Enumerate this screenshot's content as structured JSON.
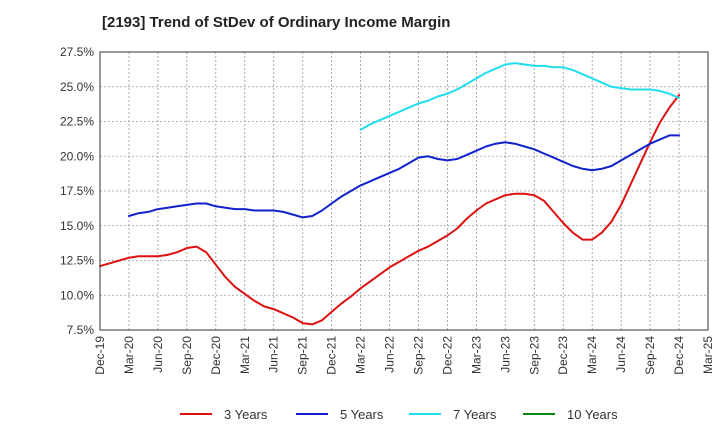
{
  "chart_data": {
    "type": "line",
    "title": "[2193]  Trend of StDev of Ordinary Income Margin",
    "xlabel": "",
    "ylabel": "",
    "x_ticks": [
      "Dec-19",
      "Mar-20",
      "Jun-20",
      "Sep-20",
      "Dec-20",
      "Mar-21",
      "Jun-21",
      "Sep-21",
      "Dec-21",
      "Mar-22",
      "Jun-22",
      "Sep-22",
      "Dec-22",
      "Mar-23",
      "Jun-23",
      "Sep-23",
      "Dec-23",
      "Mar-24",
      "Jun-24",
      "Sep-24",
      "Dec-24",
      "Mar-25"
    ],
    "y_ticks": [
      "7.5%",
      "10.0%",
      "12.5%",
      "15.0%",
      "17.5%",
      "20.0%",
      "22.5%",
      "25.0%",
      "27.5%"
    ],
    "ylim": [
      7.5,
      27.5
    ],
    "grid": true,
    "legend_position": "bottom",
    "series": [
      {
        "name": "3 Years",
        "color": "#dd1111",
        "x": [
          "Dec-19",
          "Jan-20",
          "Feb-20",
          "Mar-20",
          "Apr-20",
          "May-20",
          "Jun-20",
          "Jul-20",
          "Aug-20",
          "Sep-20",
          "Oct-20",
          "Nov-20",
          "Dec-20",
          "Jan-21",
          "Feb-21",
          "Mar-21",
          "Apr-21",
          "May-21",
          "Jun-21",
          "Jul-21",
          "Aug-21",
          "Sep-21",
          "Oct-21",
          "Nov-21",
          "Dec-21",
          "Jan-22",
          "Feb-22",
          "Mar-22",
          "Apr-22",
          "May-22",
          "Jun-22",
          "Jul-22",
          "Aug-22",
          "Sep-22",
          "Oct-22",
          "Nov-22",
          "Dec-22",
          "Jan-23",
          "Feb-23",
          "Mar-23",
          "Apr-23",
          "May-23",
          "Jun-23",
          "Jul-23",
          "Aug-23",
          "Sep-23",
          "Oct-23",
          "Nov-23",
          "Dec-23",
          "Jan-24",
          "Feb-24",
          "Mar-24",
          "Apr-24",
          "May-24",
          "Jun-24",
          "Jul-24",
          "Aug-24",
          "Sep-24",
          "Oct-24",
          "Nov-24",
          "Dec-24"
        ],
        "values": [
          12.1,
          12.3,
          12.5,
          12.7,
          12.8,
          12.8,
          12.8,
          12.9,
          13.1,
          13.4,
          13.5,
          13.1,
          12.2,
          11.3,
          10.6,
          10.1,
          9.6,
          9.2,
          9.0,
          8.7,
          8.4,
          8.0,
          7.9,
          8.2,
          8.8,
          9.4,
          9.9,
          10.5,
          11.0,
          11.5,
          12.0,
          12.4,
          12.8,
          13.2,
          13.5,
          13.9,
          14.3,
          14.8,
          15.5,
          16.1,
          16.6,
          16.9,
          17.2,
          17.3,
          17.3,
          17.2,
          16.8,
          16.0,
          15.2,
          14.5,
          14.0,
          14.0,
          14.5,
          15.3,
          16.5,
          18.0,
          19.5,
          21.0,
          22.4,
          23.5,
          24.4
        ]
      },
      {
        "name": "5 Years",
        "color": "#1122cc",
        "x": [
          "Mar-20",
          "Apr-20",
          "May-20",
          "Jun-20",
          "Jul-20",
          "Aug-20",
          "Sep-20",
          "Oct-20",
          "Nov-20",
          "Dec-20",
          "Jan-21",
          "Feb-21",
          "Mar-21",
          "Apr-21",
          "May-21",
          "Jun-21",
          "Jul-21",
          "Aug-21",
          "Sep-21",
          "Oct-21",
          "Nov-21",
          "Dec-21",
          "Jan-22",
          "Feb-22",
          "Mar-22",
          "Apr-22",
          "May-22",
          "Jun-22",
          "Jul-22",
          "Aug-22",
          "Sep-22",
          "Oct-22",
          "Nov-22",
          "Dec-22",
          "Jan-23",
          "Feb-23",
          "Mar-23",
          "Apr-23",
          "May-23",
          "Jun-23",
          "Jul-23",
          "Aug-23",
          "Sep-23",
          "Oct-23",
          "Nov-23",
          "Dec-23",
          "Jan-24",
          "Feb-24",
          "Mar-24",
          "Apr-24",
          "May-24",
          "Jun-24",
          "Jul-24",
          "Aug-24",
          "Sep-24",
          "Oct-24",
          "Nov-24",
          "Dec-24"
        ],
        "values": [
          15.7,
          15.9,
          16.0,
          16.2,
          16.3,
          16.4,
          16.5,
          16.6,
          16.6,
          16.4,
          16.3,
          16.2,
          16.2,
          16.1,
          16.1,
          16.1,
          16.0,
          15.8,
          15.6,
          15.7,
          16.1,
          16.6,
          17.1,
          17.5,
          17.9,
          18.2,
          18.5,
          18.8,
          19.1,
          19.5,
          19.9,
          20.0,
          19.8,
          19.7,
          19.8,
          20.1,
          20.4,
          20.7,
          20.9,
          21.0,
          20.9,
          20.7,
          20.5,
          20.2,
          19.9,
          19.6,
          19.3,
          19.1,
          19.0,
          19.1,
          19.3,
          19.7,
          20.1,
          20.5,
          20.9,
          21.2,
          21.5,
          21.5
        ]
      },
      {
        "name": "7 Years",
        "color": "#22ddee",
        "x": [
          "Mar-22",
          "Apr-22",
          "May-22",
          "Jun-22",
          "Jul-22",
          "Aug-22",
          "Sep-22",
          "Oct-22",
          "Nov-22",
          "Dec-22",
          "Jan-23",
          "Feb-23",
          "Mar-23",
          "Apr-23",
          "May-23",
          "Jun-23",
          "Jul-23",
          "Aug-23",
          "Sep-23",
          "Oct-23",
          "Nov-23",
          "Dec-23",
          "Jan-24",
          "Feb-24",
          "Mar-24",
          "Apr-24",
          "May-24",
          "Jun-24",
          "Jul-24",
          "Aug-24",
          "Sep-24",
          "Oct-24",
          "Nov-24",
          "Dec-24"
        ],
        "values": [
          21.9,
          22.3,
          22.6,
          22.9,
          23.2,
          23.5,
          23.8,
          24.0,
          24.3,
          24.5,
          24.8,
          25.2,
          25.6,
          26.0,
          26.3,
          26.6,
          26.7,
          26.6,
          26.5,
          26.5,
          26.4,
          26.4,
          26.2,
          25.9,
          25.6,
          25.3,
          25.0,
          24.9,
          24.8,
          24.8,
          24.8,
          24.7,
          24.5,
          24.2
        ]
      },
      {
        "name": "10 Years",
        "color": "#118811",
        "x": [],
        "values": []
      }
    ]
  }
}
